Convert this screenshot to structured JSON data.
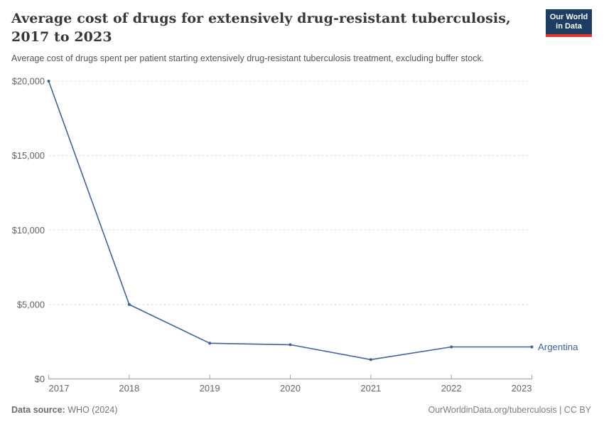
{
  "header": {
    "title_lines": [
      "Average cost of drugs for extensively drug-resistant tuberculosis,",
      "2017 to 2023"
    ],
    "subtitle": "Average cost of drugs spent per patient starting extensively drug-resistant tuberculosis treatment, excluding buffer stock.",
    "logo": {
      "line1": "Our World",
      "line2": "in Data",
      "bg_color": "#1d3d63",
      "accent_color": "#e0362c"
    }
  },
  "chart_data": {
    "type": "line",
    "title": "Average cost of drugs for extensively drug-resistant tuberculosis, 2017 to 2023",
    "xlabel": "",
    "ylabel": "",
    "x": [
      "2017",
      "2018",
      "2019",
      "2020",
      "2021",
      "2022",
      "2023"
    ],
    "series": [
      {
        "name": "Argentina",
        "color": "#3e62a0",
        "values": [
          20000,
          5000,
          2400,
          2300,
          1300,
          2150,
          2150
        ]
      }
    ],
    "ylim": [
      0,
      20000
    ],
    "yticks": [
      {
        "value": 0,
        "label": "$0"
      },
      {
        "value": 5000,
        "label": "$5,000"
      },
      {
        "value": 10000,
        "label": "$10,000"
      },
      {
        "value": 15000,
        "label": "$15,000"
      },
      {
        "value": 20000,
        "label": "$20,000"
      }
    ],
    "grid": "horizontal-dashed",
    "legend_position": "line-end-label"
  },
  "footer": {
    "source_label": "Data source:",
    "source_value": " WHO (2024)",
    "right_text": "OurWorldinData.org/tuberculosis | CC BY"
  }
}
